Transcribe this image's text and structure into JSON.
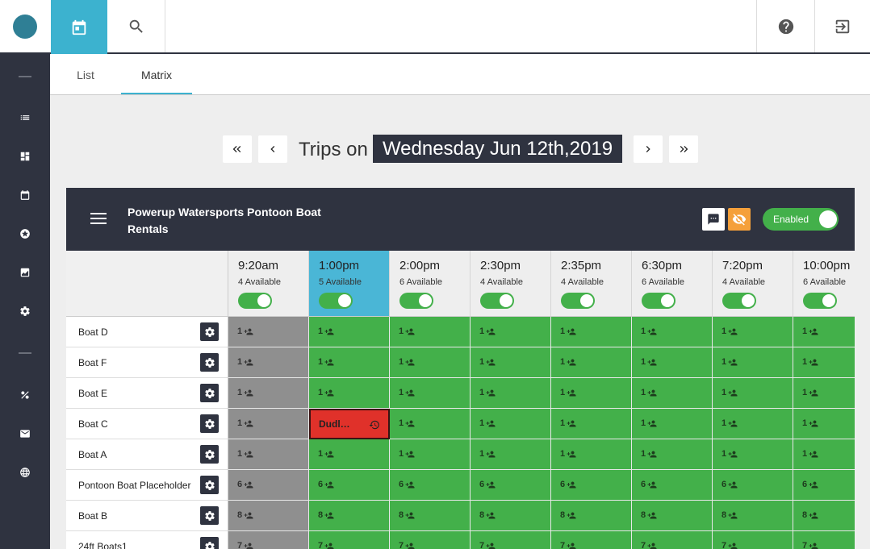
{
  "tabs": [
    {
      "label": "List"
    },
    {
      "label": "Matrix"
    }
  ],
  "date_nav": {
    "label": "Trips on",
    "date": "Wednesday Jun 12th,2019"
  },
  "panel": {
    "title": "Powerup Watersports Pontoon Boat Rentals",
    "enabled_label": "Enabled"
  },
  "timeslots": [
    {
      "time": "9:20am",
      "available": "4 Available"
    },
    {
      "time": "1:00pm",
      "available": "5 Available"
    },
    {
      "time": "2:00pm",
      "available": "6 Available"
    },
    {
      "time": "2:30pm",
      "available": "4 Available"
    },
    {
      "time": "2:35pm",
      "available": "4 Available"
    },
    {
      "time": "6:30pm",
      "available": "6 Available"
    },
    {
      "time": "7:20pm",
      "available": "4 Available"
    },
    {
      "time": "10:00pm",
      "available": "6 Available"
    }
  ],
  "boats": [
    {
      "name": "Boat D",
      "cells": [
        "1",
        "1",
        "1",
        "1",
        "1",
        "1",
        "1",
        "1"
      ]
    },
    {
      "name": "Boat F",
      "cells": [
        "1",
        "1",
        "1",
        "1",
        "1",
        "1",
        "1",
        "1"
      ]
    },
    {
      "name": "Boat E",
      "cells": [
        "1",
        "1",
        "1",
        "1",
        "1",
        "1",
        "1",
        "1"
      ]
    },
    {
      "name": "Boat C",
      "cells": [
        "1",
        "Dudl…",
        "1",
        "1",
        "1",
        "1",
        "1",
        "1"
      ]
    },
    {
      "name": "Boat A",
      "cells": [
        "1",
        "1",
        "1",
        "1",
        "1",
        "1",
        "1",
        "1"
      ]
    },
    {
      "name": "Pontoon Boat Placeholder",
      "cells": [
        "6",
        "6",
        "6",
        "6",
        "6",
        "6",
        "6",
        "6"
      ]
    },
    {
      "name": "Boat B",
      "cells": [
        "8",
        "8",
        "8",
        "8",
        "8",
        "8",
        "8",
        "8"
      ]
    },
    {
      "name": "24ft Boats1",
      "cells": [
        "7",
        "7",
        "7",
        "7",
        "7",
        "7",
        "7",
        "7"
      ]
    }
  ],
  "colors": {
    "sidebar": "#2f3340",
    "accent": "#3cb2cf",
    "available": "#43b04a",
    "past": "#8f8f8f",
    "booked": "#e0312a",
    "warning": "#f5a03a"
  }
}
